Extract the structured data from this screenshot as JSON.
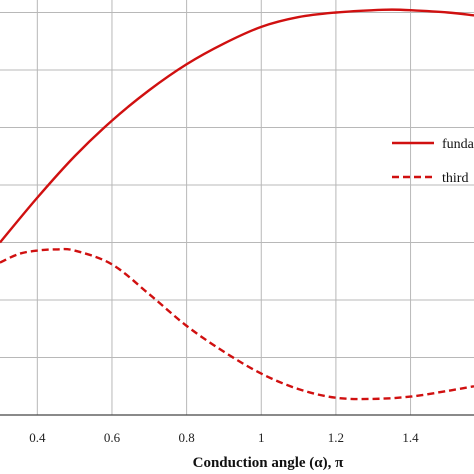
{
  "chart_data": {
    "type": "line",
    "xlabel": "Conduction angle (α), π",
    "ylabel": "",
    "xlim": [
      0.3,
      1.57
    ],
    "ylim": [
      0,
      7
    ],
    "x_ticks": [
      "0.4",
      "0.6",
      "0.8",
      "1",
      "1.2",
      "1.4"
    ],
    "grid": true,
    "legend_position": "right",
    "colors": {
      "series": "#d01010",
      "grid": "#b8b8b8",
      "axis": "#444444"
    },
    "series": [
      {
        "name": "funda",
        "style": "solid",
        "x": [
          0.3,
          0.4,
          0.5,
          0.6,
          0.7,
          0.8,
          0.9,
          1.0,
          1.1,
          1.2,
          1.3,
          1.35,
          1.4,
          1.5,
          1.57
        ],
        "y": [
          3.0,
          3.78,
          4.5,
          5.12,
          5.65,
          6.1,
          6.46,
          6.75,
          6.92,
          7.0,
          7.04,
          7.05,
          7.04,
          7.0,
          6.95
        ]
      },
      {
        "name": "third",
        "style": "dashed",
        "x": [
          0.3,
          0.35,
          0.4,
          0.45,
          0.5,
          0.6,
          0.7,
          0.8,
          0.9,
          1.0,
          1.1,
          1.2,
          1.3,
          1.4,
          1.5,
          1.57
        ],
        "y": [
          2.65,
          2.8,
          2.86,
          2.88,
          2.86,
          2.62,
          2.1,
          1.55,
          1.1,
          0.72,
          0.45,
          0.3,
          0.28,
          0.32,
          0.42,
          0.5
        ]
      }
    ]
  }
}
